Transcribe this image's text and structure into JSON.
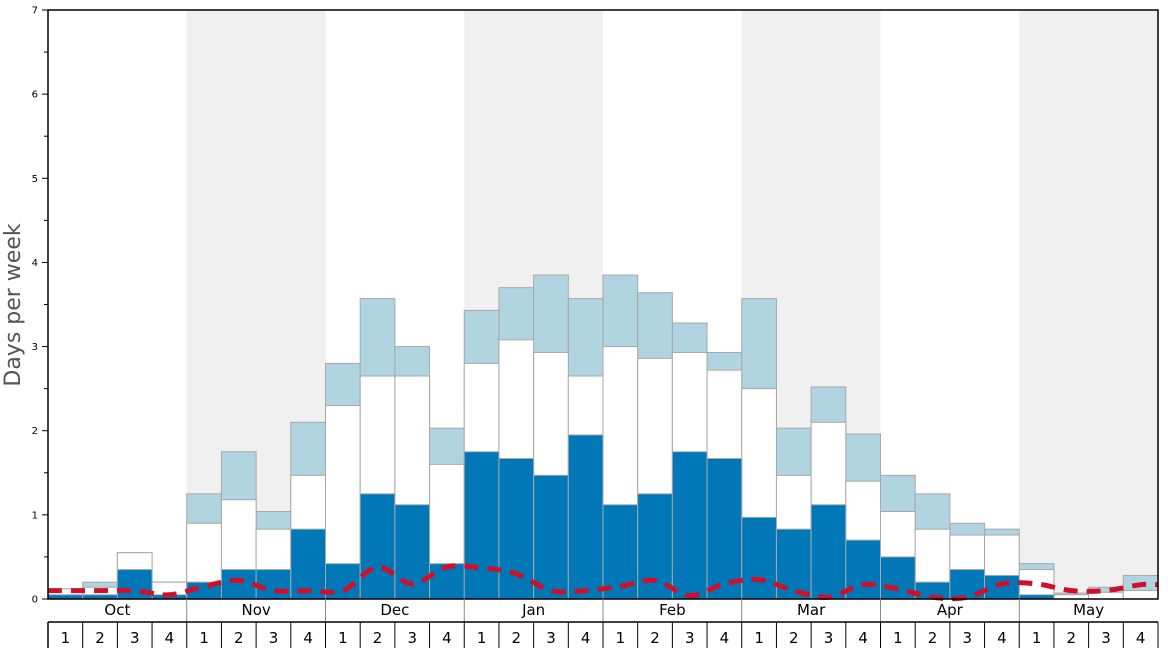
{
  "chart_data": {
    "type": "bar",
    "ylabel": "Days per week",
    "ylim": [
      0,
      7
    ],
    "y_major_ticks": [
      "0",
      "1",
      "2",
      "3",
      "4",
      "5",
      "6",
      "7"
    ],
    "months": [
      "Oct",
      "Nov",
      "Dec",
      "Jan",
      "Feb",
      "Mar",
      "Apr",
      "May"
    ],
    "weeks": [
      "1",
      "2",
      "3",
      "4"
    ],
    "colors": {
      "bottom": "#0077b6",
      "middle": "#ffffff",
      "top": "#b0d4e0",
      "dashed_line": "#d0102b",
      "shade": "#f0f0f0",
      "bar_border": "#a8a8a8"
    },
    "series": [
      {
        "values": [
          0.05,
          0.05,
          0.35,
          0.05,
          0.2,
          0.35,
          0.35,
          0.83,
          0.42,
          1.25,
          1.12,
          0.42,
          1.75,
          1.67,
          1.47,
          1.95,
          1.12,
          1.25,
          1.75,
          1.67,
          0.97,
          0.83,
          1.12,
          0.7,
          0.5,
          0.2,
          0.35,
          0.28,
          0.05,
          0.0,
          0.0,
          0.0
        ]
      },
      {
        "values": [
          0.12,
          0.14,
          0.55,
          0.2,
          0.9,
          1.18,
          0.83,
          1.47,
          2.3,
          2.65,
          2.65,
          1.6,
          2.8,
          3.08,
          2.93,
          2.65,
          3.0,
          2.86,
          2.93,
          2.72,
          2.5,
          1.47,
          2.1,
          1.4,
          1.04,
          0.83,
          0.76,
          0.76,
          0.35,
          0.05,
          0.08,
          0.1
        ]
      },
      {
        "values": [
          0.12,
          0.2,
          0.55,
          0.2,
          1.25,
          1.75,
          1.04,
          2.1,
          2.8,
          3.57,
          3.0,
          2.03,
          3.43,
          3.7,
          3.85,
          3.57,
          3.85,
          3.64,
          3.28,
          2.93,
          3.57,
          2.03,
          2.52,
          1.96,
          1.47,
          1.25,
          0.9,
          0.83,
          0.42,
          0.07,
          0.14,
          0.28
        ]
      },
      {
        "values": [
          0.1,
          0.1,
          0.1,
          0.05,
          0.15,
          0.22,
          0.1,
          0.1,
          0.1,
          0.38,
          0.18,
          0.38,
          0.37,
          0.3,
          0.1,
          0.1,
          0.15,
          0.22,
          0.04,
          0.18,
          0.23,
          0.1,
          0.02,
          0.17,
          0.12,
          0.02,
          0.02,
          0.18,
          0.18,
          0.1,
          0.1,
          0.17
        ]
      }
    ],
    "shaded_months": [
      "Nov",
      "Jan",
      "Mar",
      "May"
    ],
    "grid": false,
    "legend": "none"
  }
}
